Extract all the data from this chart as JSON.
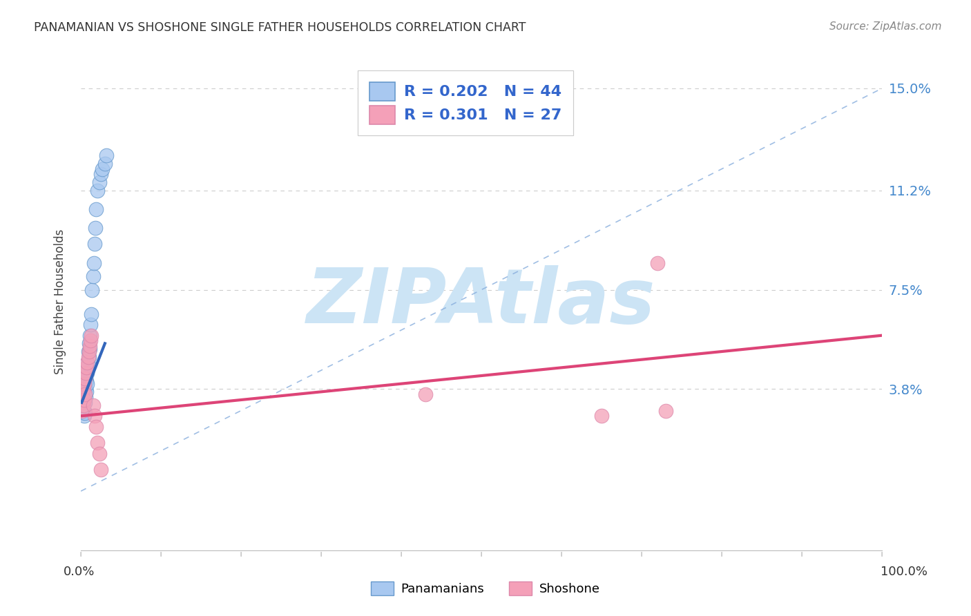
{
  "title": "PANAMANIAN VS SHOSHONE SINGLE FATHER HOUSEHOLDS CORRELATION CHART",
  "source": "Source: ZipAtlas.com",
  "ylabel": "Single Father Households",
  "ytick_values": [
    0.038,
    0.075,
    0.112,
    0.15
  ],
  "ytick_labels": [
    "3.8%",
    "7.5%",
    "11.2%",
    "15.0%"
  ],
  "xmin": 0.0,
  "xmax": 1.0,
  "ymin": -0.022,
  "ymax": 0.163,
  "blue_R": 0.202,
  "blue_N": 44,
  "pink_R": 0.301,
  "pink_N": 27,
  "legend_label_blue": "Panamanians",
  "legend_label_pink": "Shoshone",
  "blue_color": "#a8c8f0",
  "pink_color": "#f4a0b8",
  "blue_edge_color": "#6699cc",
  "pink_edge_color": "#dd88aa",
  "blue_line_color": "#3366bb",
  "pink_line_color": "#dd4477",
  "ref_line_color": "#88aedd",
  "watermark_color": "#cce4f5",
  "blue_scatter_x": [
    0.002,
    0.002,
    0.002,
    0.003,
    0.003,
    0.003,
    0.003,
    0.004,
    0.004,
    0.004,
    0.004,
    0.005,
    0.005,
    0.005,
    0.005,
    0.006,
    0.006,
    0.006,
    0.007,
    0.007,
    0.007,
    0.008,
    0.008,
    0.008,
    0.009,
    0.009,
    0.01,
    0.01,
    0.011,
    0.011,
    0.012,
    0.013,
    0.014,
    0.015,
    0.016,
    0.017,
    0.018,
    0.019,
    0.021,
    0.023,
    0.025,
    0.027,
    0.03,
    0.032
  ],
  "blue_scatter_y": [
    0.033,
    0.034,
    0.031,
    0.036,
    0.032,
    0.035,
    0.029,
    0.038,
    0.034,
    0.03,
    0.028,
    0.04,
    0.037,
    0.033,
    0.029,
    0.042,
    0.038,
    0.035,
    0.045,
    0.041,
    0.037,
    0.048,
    0.044,
    0.04,
    0.052,
    0.047,
    0.055,
    0.05,
    0.058,
    0.053,
    0.062,
    0.066,
    0.075,
    0.08,
    0.085,
    0.092,
    0.098,
    0.105,
    0.112,
    0.115,
    0.118,
    0.12,
    0.122,
    0.125
  ],
  "pink_scatter_x": [
    0.001,
    0.002,
    0.002,
    0.003,
    0.003,
    0.004,
    0.004,
    0.005,
    0.005,
    0.006,
    0.007,
    0.008,
    0.009,
    0.01,
    0.011,
    0.012,
    0.013,
    0.015,
    0.017,
    0.019,
    0.021,
    0.023,
    0.025,
    0.43,
    0.65,
    0.72,
    0.73
  ],
  "pink_scatter_y": [
    0.033,
    0.036,
    0.03,
    0.038,
    0.032,
    0.04,
    0.034,
    0.042,
    0.036,
    0.044,
    0.046,
    0.048,
    0.05,
    0.052,
    0.054,
    0.056,
    0.058,
    0.032,
    0.028,
    0.024,
    0.018,
    0.014,
    0.008,
    0.036,
    0.028,
    0.085,
    0.03
  ],
  "blue_regline_x": [
    0.001,
    0.03
  ],
  "blue_regline_y": [
    0.033,
    0.055
  ],
  "pink_regline_x": [
    0.0,
    1.0
  ],
  "pink_regline_y": [
    0.028,
    0.058
  ],
  "ref_line_x": [
    0.0,
    1.0
  ],
  "ref_line_y": [
    0.0,
    0.15
  ]
}
